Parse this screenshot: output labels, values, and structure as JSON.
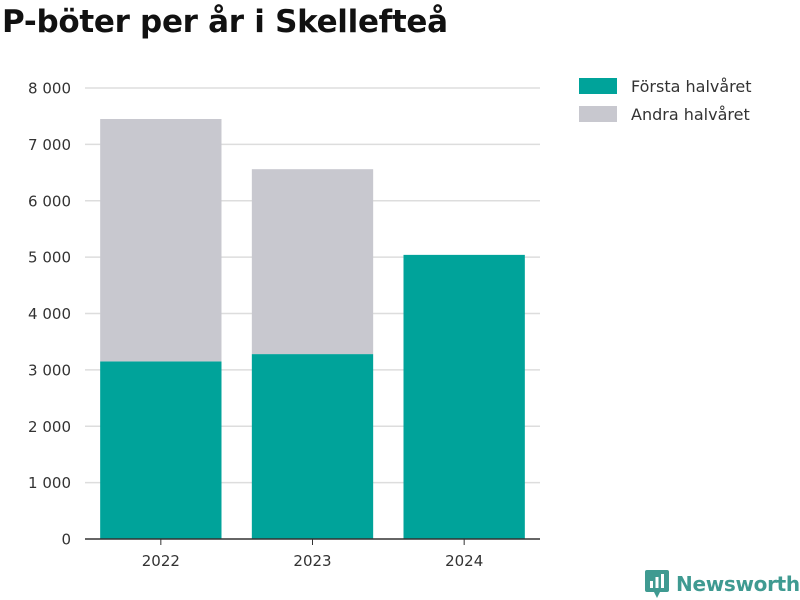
{
  "title": "P-böter per år i Skellefteå",
  "colors": {
    "first": "#00a39a",
    "second": "#c8c8cf",
    "grid": "#dddddd",
    "axis": "#333333",
    "brand": "#3f9a91"
  },
  "legend": [
    {
      "label": "Första halvåret",
      "color": "#00a39a"
    },
    {
      "label": "Andra halvåret",
      "color": "#c8c8cf"
    }
  ],
  "brand": {
    "name": "Newsworthy",
    "icon": "newsworthy-logo-icon"
  },
  "chart_data": {
    "type": "bar",
    "stacked": true,
    "title": "P-böter per år i Skellefteå",
    "categories": [
      "2022",
      "2023",
      "2024"
    ],
    "series": [
      {
        "name": "Första halvåret",
        "values": [
          3150,
          3280,
          5040
        ]
      },
      {
        "name": "Andra halvåret",
        "values": [
          4300,
          3280,
          null
        ]
      }
    ],
    "ylim": [
      0,
      8000
    ],
    "yticks": [
      0,
      1000,
      2000,
      3000,
      4000,
      5000,
      6000,
      7000,
      8000
    ],
    "ytick_labels": [
      "0",
      "1 000",
      "2 000",
      "3 000",
      "4 000",
      "5 000",
      "6 000",
      "7 000",
      "8 000"
    ],
    "grid": true,
    "legend_position": "top-right"
  }
}
